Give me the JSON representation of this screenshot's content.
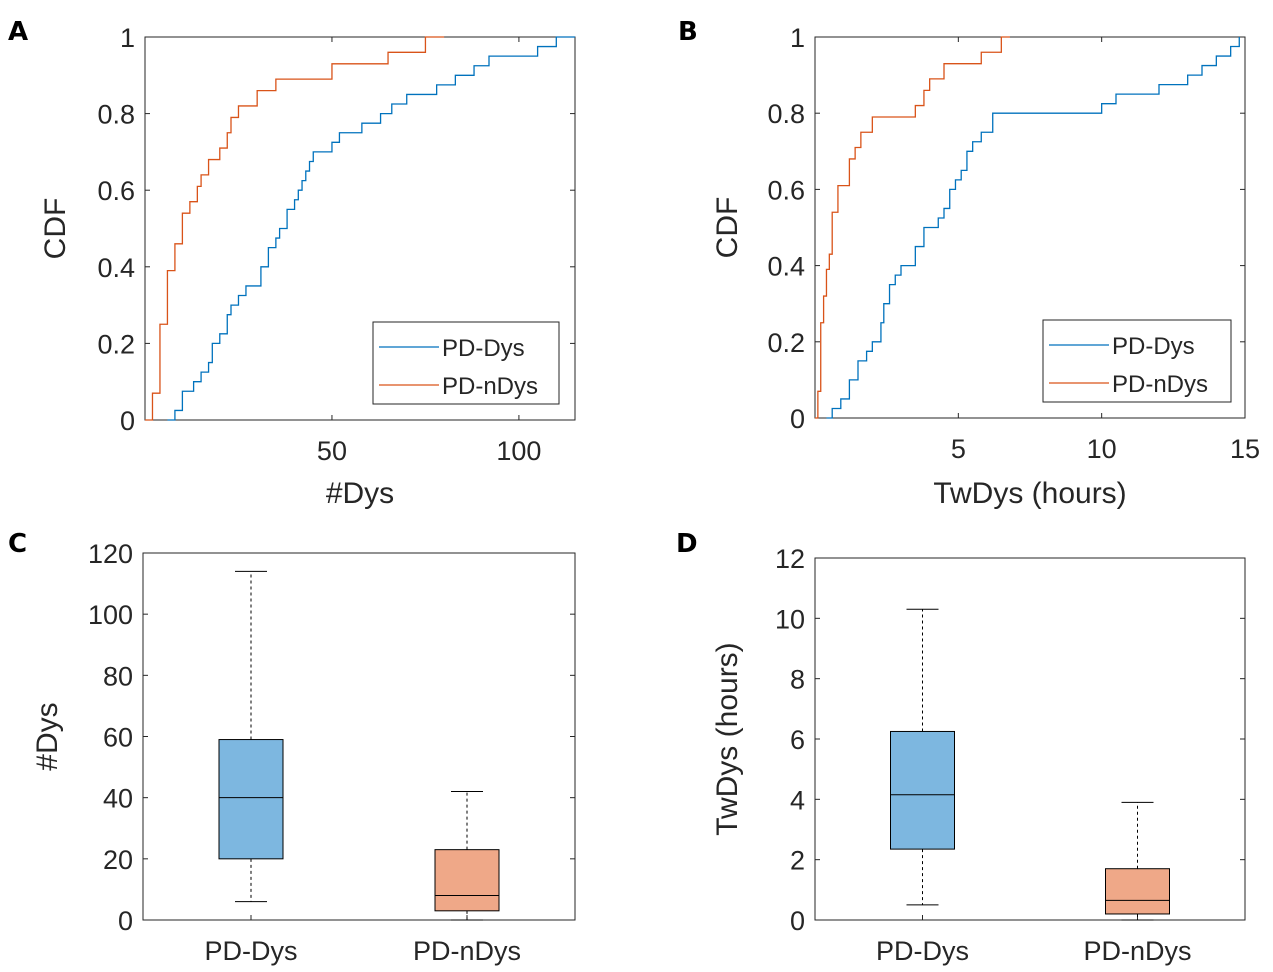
{
  "colors": {
    "pd_dys": "#0072BD",
    "pd_ndys": "#D95319",
    "box_dys": "#7DB7E0",
    "box_ndys": "#EFA888",
    "axis": "#262626"
  },
  "chart_data": [
    {
      "id": "A",
      "panel_label": "A",
      "type": "line",
      "step": true,
      "xlabel": "#Dys",
      "ylabel": "CDF",
      "xlim": [
        0,
        115
      ],
      "ylim": [
        0,
        1
      ],
      "xticks": [
        50,
        100
      ],
      "yticks": [
        0,
        0.2,
        0.4,
        0.6,
        0.8,
        1
      ],
      "legend": {
        "position": "bottom-right",
        "entries": [
          "PD-Dys",
          "PD-nDys"
        ]
      },
      "series": [
        {
          "name": "PD-Dys",
          "x": [
            6,
            8,
            10,
            13,
            15,
            17,
            18,
            20,
            22,
            23,
            25,
            27,
            28,
            31,
            33,
            35,
            36,
            38,
            40,
            41,
            42,
            43,
            44,
            45,
            46,
            47,
            48,
            50,
            52,
            55,
            58,
            60,
            63,
            66,
            70,
            72,
            75,
            78,
            80,
            83,
            85,
            88,
            90,
            92,
            95,
            100,
            105,
            110,
            115
          ],
          "y": [
            0,
            0.025,
            0.075,
            0.1,
            0.125,
            0.15,
            0.2,
            0.225,
            0.275,
            0.3,
            0.325,
            0.35,
            0.35,
            0.4,
            0.45,
            0.475,
            0.5,
            0.55,
            0.575,
            0.6,
            0.625,
            0.65,
            0.675,
            0.7,
            0.7,
            0.7,
            0.7,
            0.725,
            0.75,
            0.75,
            0.775,
            0.775,
            0.8,
            0.825,
            0.85,
            0.85,
            0.85,
            0.875,
            0.875,
            0.9,
            0.9,
            0.925,
            0.925,
            0.95,
            0.95,
            0.95,
            0.975,
            1.0,
            1.0
          ]
        },
        {
          "name": "PD-nDys",
          "x": [
            0,
            2,
            4,
            6,
            8,
            10,
            12,
            14,
            15,
            17,
            20,
            22,
            23,
            25,
            27,
            30,
            35,
            40,
            45,
            50,
            55,
            60,
            65,
            70,
            75,
            80
          ],
          "y": [
            0,
            0.07,
            0.25,
            0.39,
            0.46,
            0.54,
            0.57,
            0.61,
            0.64,
            0.68,
            0.71,
            0.75,
            0.79,
            0.82,
            0.82,
            0.86,
            0.89,
            0.89,
            0.89,
            0.93,
            0.93,
            0.93,
            0.96,
            0.96,
            1.0,
            1.0
          ]
        }
      ]
    },
    {
      "id": "B",
      "panel_label": "B",
      "type": "line",
      "step": true,
      "xlabel": "TwDys (hours)",
      "ylabel": "CDF",
      "xlim": [
        0,
        15
      ],
      "ylim": [
        0,
        1
      ],
      "xticks": [
        5,
        10,
        15
      ],
      "yticks": [
        0,
        0.2,
        0.4,
        0.6,
        0.8,
        1
      ],
      "legend": {
        "position": "bottom-right",
        "entries": [
          "PD-Dys",
          "PD-nDys"
        ]
      },
      "series": [
        {
          "name": "PD-Dys",
          "x": [
            0.4,
            0.6,
            0.9,
            1.2,
            1.5,
            1.8,
            2.0,
            2.3,
            2.4,
            2.6,
            2.8,
            3.0,
            3.2,
            3.5,
            3.8,
            4.0,
            4.3,
            4.5,
            4.7,
            4.9,
            5.1,
            5.3,
            5.5,
            5.8,
            6.2,
            6.6,
            7.0,
            8.0,
            9.0,
            10.0,
            10.5,
            11.0,
            12.0,
            13.0,
            13.5,
            14.0,
            14.5,
            14.8
          ],
          "y": [
            0,
            0.025,
            0.05,
            0.1,
            0.15,
            0.175,
            0.2,
            0.25,
            0.3,
            0.35,
            0.375,
            0.4,
            0.4,
            0.45,
            0.5,
            0.5,
            0.525,
            0.55,
            0.6,
            0.625,
            0.65,
            0.7,
            0.725,
            0.75,
            0.8,
            0.8,
            0.8,
            0.8,
            0.8,
            0.825,
            0.85,
            0.85,
            0.875,
            0.9,
            0.925,
            0.95,
            0.975,
            1.0
          ]
        },
        {
          "name": "PD-nDys",
          "x": [
            0,
            0.1,
            0.2,
            0.3,
            0.4,
            0.5,
            0.6,
            0.8,
            1.2,
            1.4,
            1.6,
            2.0,
            2.5,
            3.0,
            3.5,
            3.8,
            4.0,
            4.5,
            5.0,
            5.8,
            6.0,
            6.5,
            6.8
          ],
          "y": [
            0,
            0.07,
            0.25,
            0.32,
            0.39,
            0.43,
            0.54,
            0.61,
            0.68,
            0.71,
            0.75,
            0.79,
            0.79,
            0.79,
            0.82,
            0.86,
            0.89,
            0.93,
            0.93,
            0.96,
            0.96,
            1.0,
            1.0
          ]
        }
      ]
    },
    {
      "id": "C",
      "panel_label": "C",
      "type": "box",
      "ylabel": "#Dys",
      "ylim": [
        0,
        120
      ],
      "yticks": [
        0,
        20,
        40,
        60,
        80,
        100,
        120
      ],
      "categories": [
        "PD-Dys",
        "PD-nDys"
      ],
      "boxes": [
        {
          "name": "PD-Dys",
          "min": 6,
          "q1": 20,
          "median": 40,
          "q3": 59,
          "max": 114
        },
        {
          "name": "PD-nDys",
          "min": 0,
          "q1": 3,
          "median": 8,
          "q3": 23,
          "max": 42
        }
      ]
    },
    {
      "id": "D",
      "panel_label": "D",
      "type": "box",
      "ylabel": "TwDys (hours)",
      "ylim": [
        0,
        12
      ],
      "yticks": [
        0,
        2,
        4,
        6,
        8,
        10,
        12
      ],
      "categories": [
        "PD-Dys",
        "PD-nDys"
      ],
      "boxes": [
        {
          "name": "PD-Dys",
          "min": 0.5,
          "q1": 2.35,
          "median": 4.15,
          "q3": 6.25,
          "max": 10.3
        },
        {
          "name": "PD-nDys",
          "min": 0,
          "q1": 0.2,
          "median": 0.65,
          "q3": 1.7,
          "max": 3.9
        }
      ]
    }
  ]
}
